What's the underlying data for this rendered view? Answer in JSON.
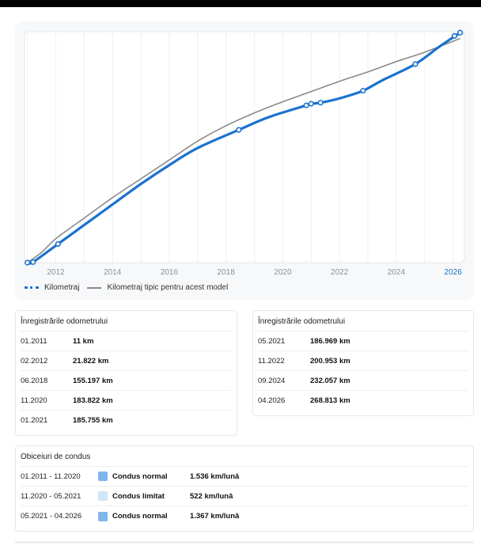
{
  "chart_data": {
    "type": "line",
    "title": "",
    "xlabel": "",
    "ylabel": "",
    "x_ticks": [
      "2012",
      "2014",
      "2016",
      "2018",
      "2020",
      "2022",
      "2024",
      "2026"
    ],
    "highlight_tick": "2026",
    "xlim": [
      2010.9,
      2026.4
    ],
    "ylim": [
      0,
      270000
    ],
    "grid": true,
    "legend_position": "bottom-left",
    "series": [
      {
        "name": "Kilometraj",
        "color": "#1a72cf",
        "style": "dotted-markers",
        "points": [
          [
            2011.0,
            11
          ],
          [
            2011.2,
            700
          ],
          [
            2012.08,
            21822
          ],
          [
            2013.0,
            44000
          ],
          [
            2014.0,
            68000
          ],
          [
            2015.0,
            92000
          ],
          [
            2016.0,
            114000
          ],
          [
            2017.0,
            134000
          ],
          [
            2018.45,
            155197
          ],
          [
            2019.5,
            170000
          ],
          [
            2020.83,
            183822
          ],
          [
            2021.0,
            185755
          ],
          [
            2021.33,
            186969
          ],
          [
            2022.0,
            192000
          ],
          [
            2022.83,
            200953
          ],
          [
            2023.5,
            213000
          ],
          [
            2024.67,
            232057
          ],
          [
            2025.5,
            252000
          ],
          [
            2026.25,
            268813
          ]
        ],
        "markers": [
          [
            2011.0,
            11
          ],
          [
            2011.2,
            700
          ],
          [
            2012.08,
            21822
          ],
          [
            2018.45,
            155197
          ],
          [
            2020.83,
            183822
          ],
          [
            2021.0,
            185755
          ],
          [
            2021.33,
            186969
          ],
          [
            2022.83,
            200953
          ],
          [
            2024.67,
            232057
          ],
          [
            2026.05,
            265000
          ],
          [
            2026.25,
            268813
          ]
        ]
      },
      {
        "name": "Kilometraj tipic pentru acest model",
        "color": "#8a8a8a",
        "style": "solid",
        "points": [
          [
            2011.0,
            0
          ],
          [
            2011.5,
            12000
          ],
          [
            2012.0,
            28000
          ],
          [
            2013.0,
            52000
          ],
          [
            2014.0,
            76000
          ],
          [
            2015.0,
            98000
          ],
          [
            2016.0,
            120000
          ],
          [
            2017.0,
            142000
          ],
          [
            2018.0,
            160000
          ],
          [
            2019.0,
            175000
          ],
          [
            2020.0,
            188000
          ],
          [
            2021.0,
            200000
          ],
          [
            2022.0,
            212000
          ],
          [
            2023.0,
            223000
          ],
          [
            2024.0,
            235000
          ],
          [
            2025.0,
            246000
          ],
          [
            2026.25,
            262000
          ]
        ]
      }
    ]
  },
  "odometer_left": {
    "title": "Înregistrările odometrului",
    "rows": [
      {
        "date": "01.2011",
        "km": "11 km"
      },
      {
        "date": "02.2012",
        "km": "21.822 km"
      },
      {
        "date": "06.2018",
        "km": "155.197 km"
      },
      {
        "date": "11.2020",
        "km": "183.822 km"
      },
      {
        "date": "01.2021",
        "km": "185.755 km"
      }
    ]
  },
  "odometer_right": {
    "title": "Înregistrările odometrului",
    "rows": [
      {
        "date": "05.2021",
        "km": "186.969 km"
      },
      {
        "date": "11.2022",
        "km": "200.953 km"
      },
      {
        "date": "09.2024",
        "km": "232.057 km"
      },
      {
        "date": "04.2026",
        "km": "268.813 km"
      }
    ]
  },
  "driving": {
    "title": "Obiceiuri de condus",
    "rows": [
      {
        "range": "01.2011 - 11.2020",
        "color": "#7fb6ec",
        "mode": "Condus normal",
        "rate": "1.536 km/lună"
      },
      {
        "range": "11.2020 - 05.2021",
        "color": "#cfe6f8",
        "mode": "Condus limitat",
        "rate": "522 km/lună"
      },
      {
        "range": "05.2021 - 04.2026",
        "color": "#7fb6ec",
        "mode": "Condus normal",
        "rate": "1.367 km/lună"
      }
    ]
  }
}
